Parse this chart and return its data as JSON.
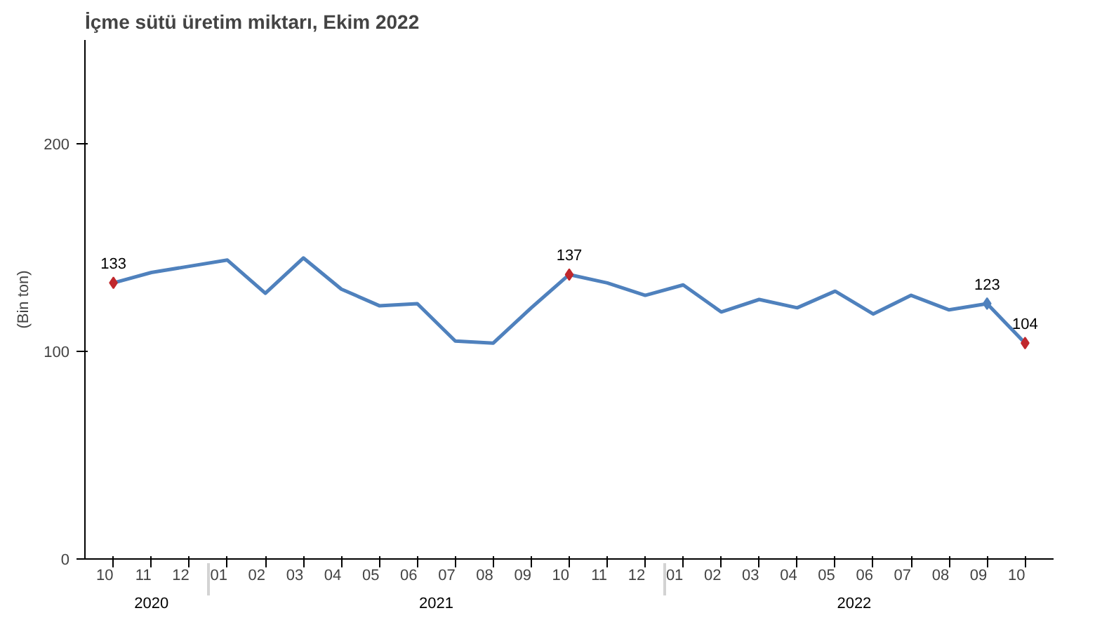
{
  "chart_data": {
    "type": "line",
    "title": "İçme sütü üretim miktarı, Ekim 2022",
    "ylabel": "(Bin ton)",
    "categories": [
      "10",
      "11",
      "12",
      "01",
      "02",
      "03",
      "04",
      "05",
      "06",
      "07",
      "08",
      "09",
      "10",
      "11",
      "12",
      "01",
      "02",
      "03",
      "04",
      "05",
      "06",
      "07",
      "08",
      "09",
      "10"
    ],
    "annotations": [
      "2020",
      "2021",
      "2022"
    ],
    "series": [
      {
        "color": "#4f81bd",
        "values": [
          133,
          138,
          141,
          144,
          128,
          145,
          130,
          122,
          123,
          105,
          104,
          121,
          137,
          133,
          127,
          132,
          119,
          125,
          121,
          129,
          118,
          127,
          120,
          123,
          104
        ],
        "value_labels": [
          "133",
          null,
          null,
          null,
          null,
          null,
          null,
          null,
          null,
          null,
          null,
          null,
          "137",
          null,
          null,
          null,
          null,
          null,
          null,
          null,
          null,
          null,
          null,
          "123",
          "104"
        ],
        "colors": [
          "#c0282d",
          null,
          null,
          null,
          null,
          null,
          null,
          null,
          null,
          null,
          null,
          null,
          "#c0282d",
          null,
          null,
          null,
          null,
          null,
          null,
          null,
          null,
          null,
          null,
          "#4f81bd",
          "#c0282d"
        ]
      }
    ],
    "ylim": [
      0,
      250
    ],
    "yticks": [
      0,
      100,
      200
    ],
    "grid": false
  }
}
